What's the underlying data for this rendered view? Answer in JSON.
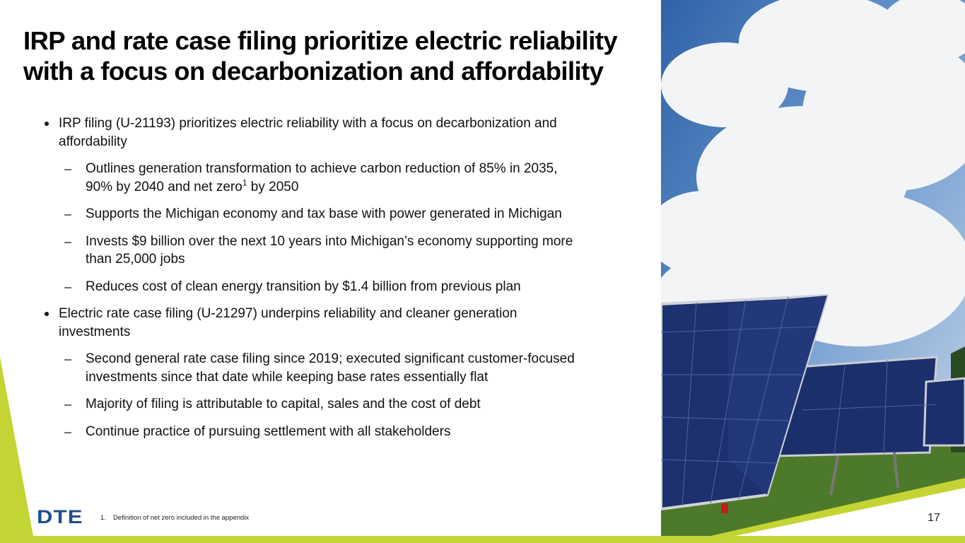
{
  "header": {
    "title": "IRP and rate case filing prioritize electric reliability with a focus on decarbonization and affordability"
  },
  "bullets": [
    {
      "text": "IRP filing (U-21193) prioritizes electric reliability with a focus on decarbonization and affordability",
      "items": [
        {
          "text": "Outlines generation transformation to achieve carbon reduction of 85% in 2035, 90% by 2040 and net zero",
          "sup": "1",
          "text_end": " by 2050"
        },
        {
          "text": "Supports the Michigan economy and tax base with power generated in Michigan"
        },
        {
          "text": "Invests $9 billion over the next 10 years into Michigan’s economy supporting more than 25,000 jobs"
        },
        {
          "text": "Reduces cost of clean energy transition by $1.4 billion from previous plan"
        }
      ]
    },
    {
      "text": "Electric rate case filing (U-21297) underpins reliability and cleaner generation investments",
      "items": [
        {
          "text": "Second general rate case filing since 2019; executed significant customer-focused investments since that date while keeping base rates essentially flat"
        },
        {
          "text": "Majority of filing is attributable to capital, sales and the cost of debt"
        },
        {
          "text": "Continue practice of pursuing settlement with all stakeholders"
        }
      ]
    }
  ],
  "footnote": {
    "number": "1.",
    "text": "Definition of net zero included in the appendix"
  },
  "logo": "DTE",
  "page_number": "17"
}
